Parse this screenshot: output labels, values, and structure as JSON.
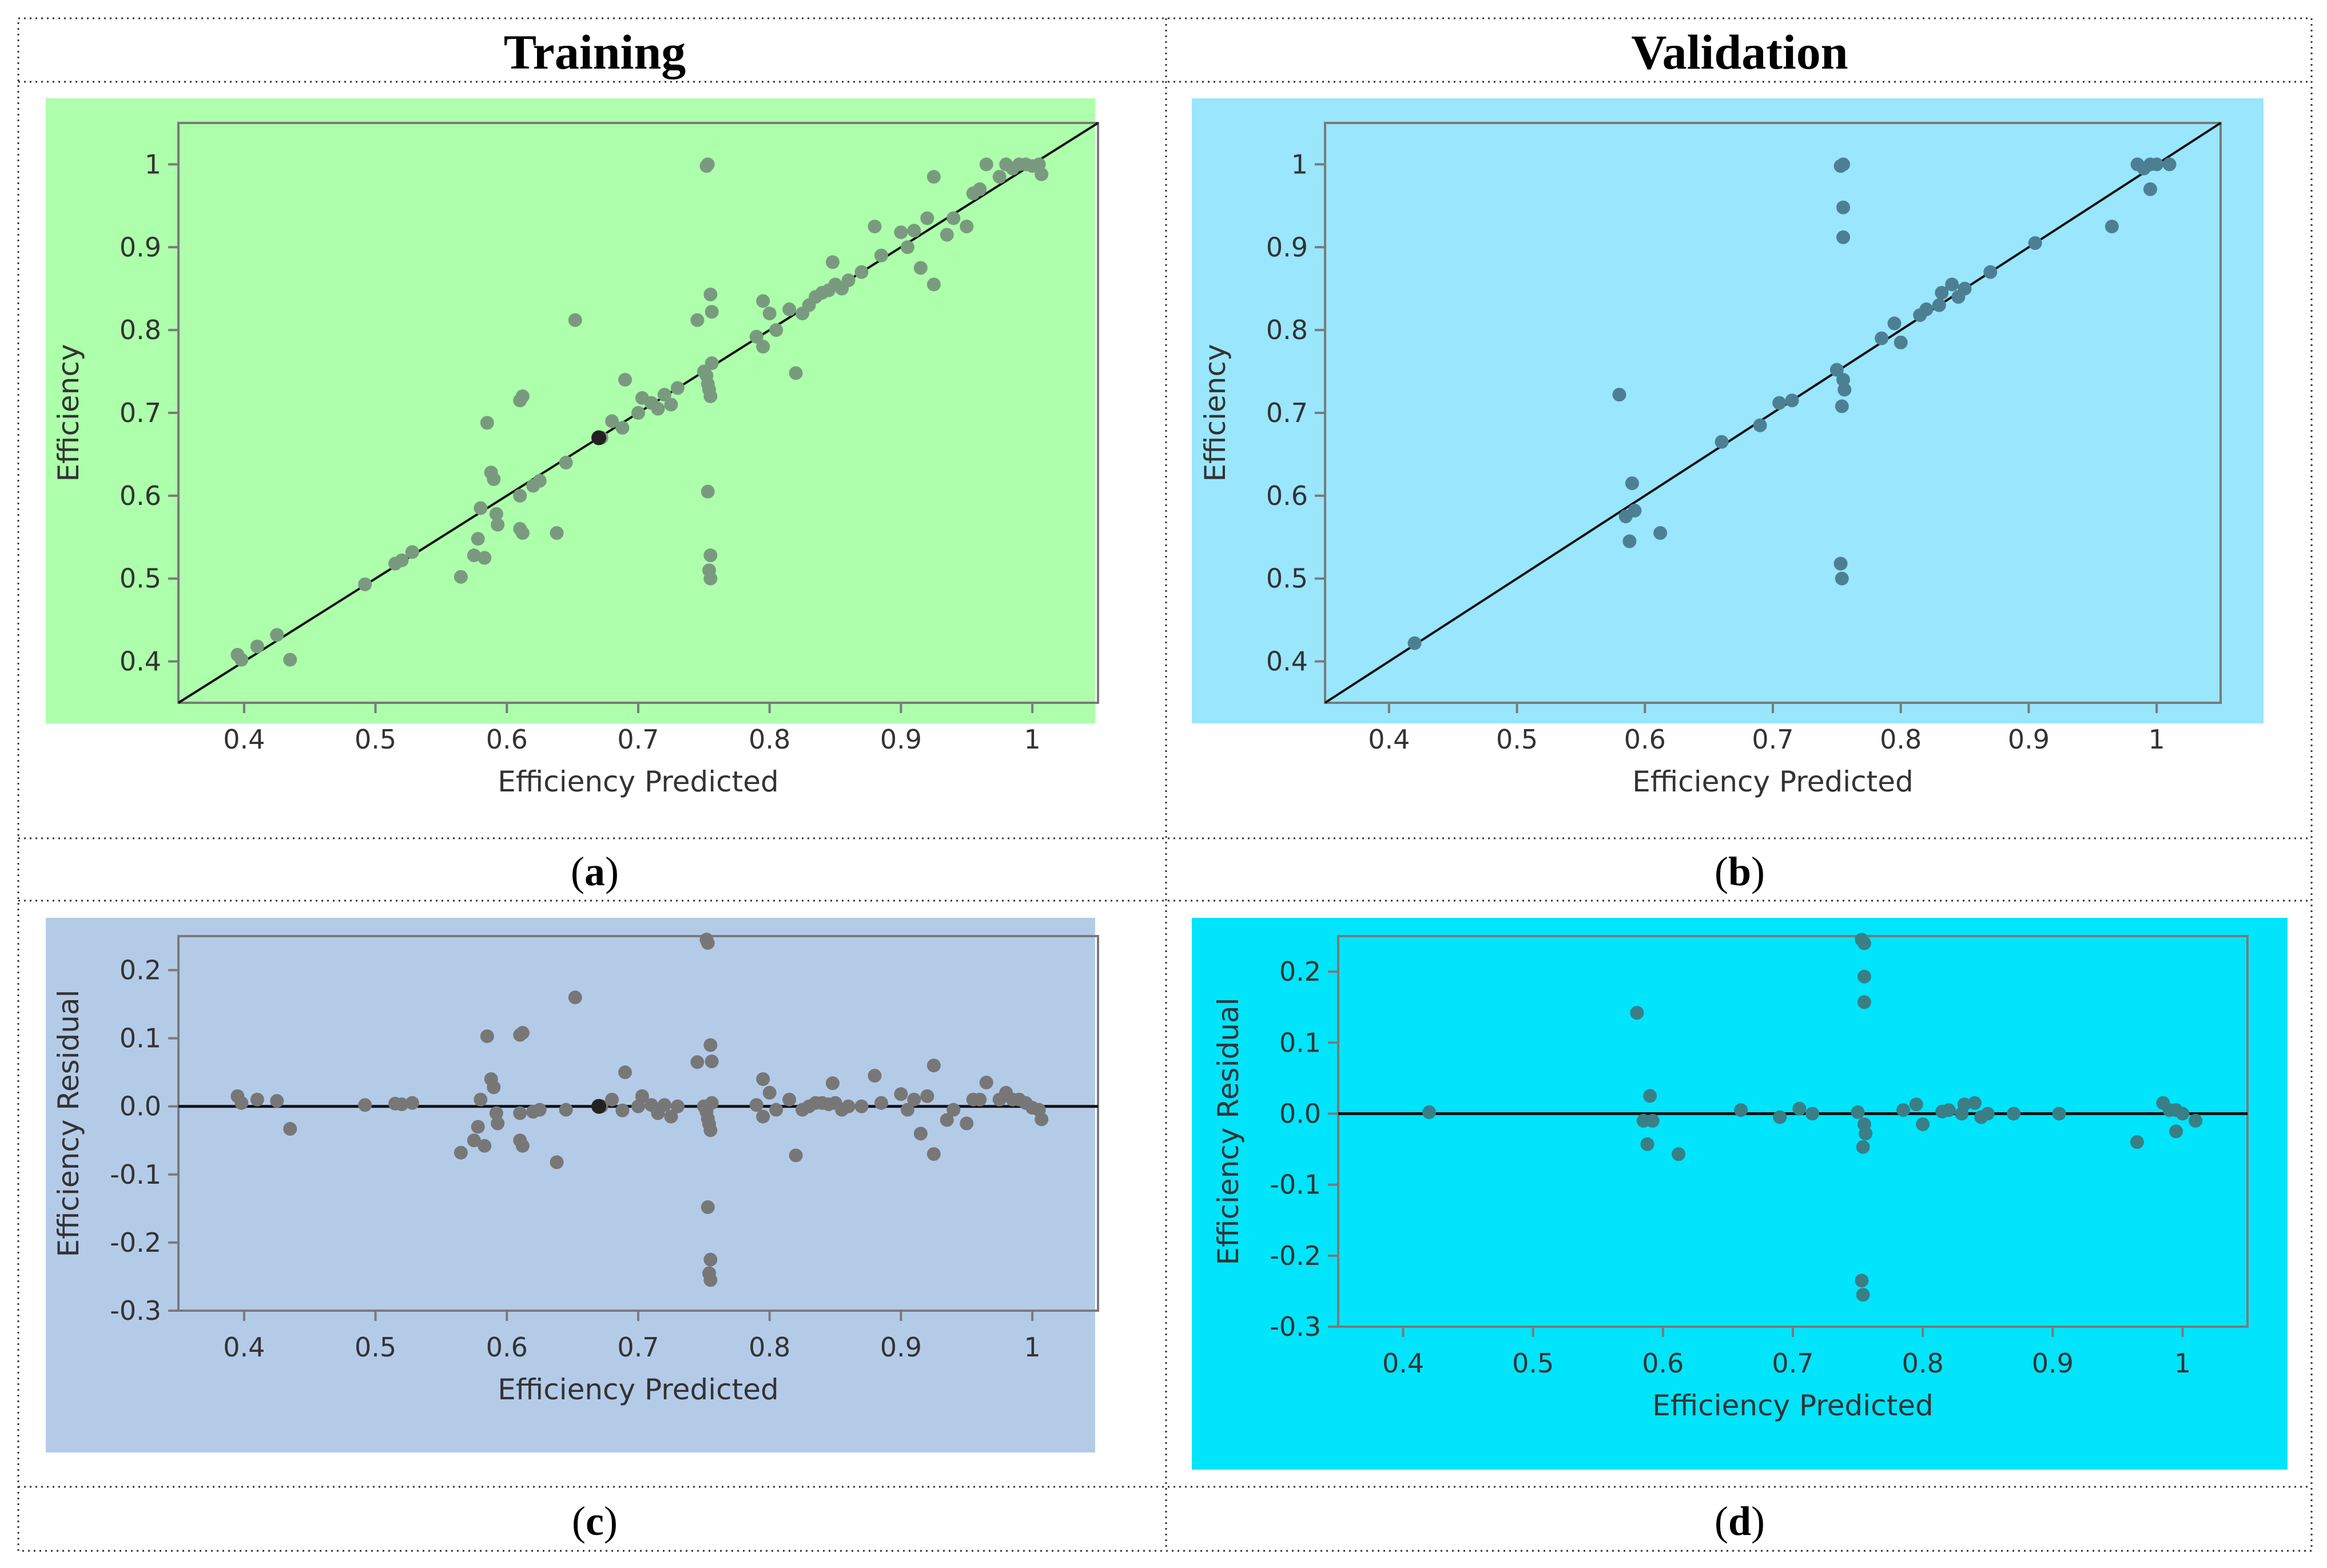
{
  "layout_headers": {
    "left": "Training",
    "right": "Validation"
  },
  "chart_data": [
    {
      "id": "a",
      "type": "scatter",
      "caption_letter": "a",
      "panel_color": "#adffab",
      "marker_color": "#7a9a80",
      "xlabel": "Efficiency Predicted",
      "ylabel": "Efficiency",
      "xlim": [
        0.35,
        1.05
      ],
      "ylim": [
        0.35,
        1.05
      ],
      "xticks": [
        0.4,
        0.5,
        0.6,
        0.7,
        0.8,
        0.9,
        1
      ],
      "yticks": [
        0.4,
        0.5,
        0.6,
        0.7,
        0.8,
        0.9,
        1
      ],
      "reference_line": {
        "type": "identity",
        "from": 0.35,
        "to": 1.05
      },
      "highlight_point": [
        0.67,
        0.67
      ],
      "points": [
        [
          0.395,
          0.408
        ],
        [
          0.398,
          0.402
        ],
        [
          0.41,
          0.418
        ],
        [
          0.425,
          0.432
        ],
        [
          0.435,
          0.402
        ],
        [
          0.492,
          0.493
        ],
        [
          0.515,
          0.518
        ],
        [
          0.52,
          0.522
        ],
        [
          0.528,
          0.532
        ],
        [
          0.565,
          0.502
        ],
        [
          0.575,
          0.528
        ],
        [
          0.578,
          0.548
        ],
        [
          0.583,
          0.525
        ],
        [
          0.58,
          0.585
        ],
        [
          0.585,
          0.688
        ],
        [
          0.588,
          0.628
        ],
        [
          0.59,
          0.62
        ],
        [
          0.592,
          0.578
        ],
        [
          0.593,
          0.565
        ],
        [
          0.61,
          0.6
        ],
        [
          0.61,
          0.56
        ],
        [
          0.612,
          0.555
        ],
        [
          0.612,
          0.72
        ],
        [
          0.61,
          0.715
        ],
        [
          0.62,
          0.612
        ],
        [
          0.625,
          0.618
        ],
        [
          0.638,
          0.555
        ],
        [
          0.645,
          0.64
        ],
        [
          0.652,
          0.812
        ],
        [
          0.672,
          0.67
        ],
        [
          0.68,
          0.69
        ],
        [
          0.688,
          0.682
        ],
        [
          0.69,
          0.74
        ],
        [
          0.7,
          0.7
        ],
        [
          0.703,
          0.718
        ],
        [
          0.71,
          0.712
        ],
        [
          0.715,
          0.705
        ],
        [
          0.72,
          0.722
        ],
        [
          0.725,
          0.71
        ],
        [
          0.73,
          0.73
        ],
        [
          0.745,
          0.812
        ],
        [
          0.75,
          0.75
        ],
        [
          0.752,
          0.745
        ],
        [
          0.753,
          0.735
        ],
        [
          0.754,
          0.728
        ],
        [
          0.755,
          0.72
        ],
        [
          0.756,
          0.76
        ],
        [
          0.752,
          0.998
        ],
        [
          0.753,
          1.0
        ],
        [
          0.755,
          0.843
        ],
        [
          0.756,
          0.822
        ],
        [
          0.753,
          0.605
        ],
        [
          0.755,
          0.528
        ],
        [
          0.754,
          0.51
        ],
        [
          0.755,
          0.5
        ],
        [
          0.79,
          0.792
        ],
        [
          0.795,
          0.78
        ],
        [
          0.795,
          0.835
        ],
        [
          0.8,
          0.82
        ],
        [
          0.805,
          0.8
        ],
        [
          0.815,
          0.825
        ],
        [
          0.82,
          0.748
        ],
        [
          0.825,
          0.82
        ],
        [
          0.83,
          0.83
        ],
        [
          0.835,
          0.84
        ],
        [
          0.84,
          0.845
        ],
        [
          0.845,
          0.848
        ],
        [
          0.848,
          0.882
        ],
        [
          0.85,
          0.855
        ],
        [
          0.855,
          0.85
        ],
        [
          0.86,
          0.86
        ],
        [
          0.87,
          0.87
        ],
        [
          0.88,
          0.925
        ],
        [
          0.885,
          0.89
        ],
        [
          0.9,
          0.918
        ],
        [
          0.905,
          0.9
        ],
        [
          0.91,
          0.92
        ],
        [
          0.915,
          0.875
        ],
        [
          0.92,
          0.935
        ],
        [
          0.925,
          0.985
        ],
        [
          0.925,
          0.855
        ],
        [
          0.935,
          0.915
        ],
        [
          0.94,
          0.935
        ],
        [
          0.95,
          0.925
        ],
        [
          0.955,
          0.965
        ],
        [
          0.96,
          0.97
        ],
        [
          0.965,
          1.0
        ],
        [
          0.975,
          0.985
        ],
        [
          0.98,
          1.0
        ],
        [
          0.985,
          0.995
        ],
        [
          0.99,
          1.0
        ],
        [
          0.995,
          1.0
        ],
        [
          1.0,
          0.998
        ],
        [
          1.005,
          1.0
        ],
        [
          1.007,
          0.988
        ]
      ]
    },
    {
      "id": "b",
      "type": "scatter",
      "caption_letter": "b",
      "panel_color": "#99e6fd",
      "marker_color": "#4d7f94",
      "xlabel": "Efficiency Predicted",
      "ylabel": "Efficiency",
      "xlim": [
        0.35,
        1.05
      ],
      "ylim": [
        0.35,
        1.05
      ],
      "xticks": [
        0.4,
        0.5,
        0.6,
        0.7,
        0.8,
        0.9,
        1
      ],
      "yticks": [
        0.4,
        0.5,
        0.6,
        0.7,
        0.8,
        0.9,
        1
      ],
      "reference_line": {
        "type": "identity",
        "from": 0.35,
        "to": 1.05
      },
      "points": [
        [
          0.42,
          0.422
        ],
        [
          0.58,
          0.722
        ],
        [
          0.585,
          0.575
        ],
        [
          0.59,
          0.615
        ],
        [
          0.592,
          0.582
        ],
        [
          0.588,
          0.545
        ],
        [
          0.612,
          0.555
        ],
        [
          0.66,
          0.665
        ],
        [
          0.69,
          0.685
        ],
        [
          0.705,
          0.712
        ],
        [
          0.715,
          0.715
        ],
        [
          0.75,
          0.752
        ],
        [
          0.753,
          0.998
        ],
        [
          0.755,
          1.0
        ],
        [
          0.755,
          0.948
        ],
        [
          0.755,
          0.912
        ],
        [
          0.755,
          0.74
        ],
        [
          0.756,
          0.728
        ],
        [
          0.754,
          0.708
        ],
        [
          0.753,
          0.518
        ],
        [
          0.754,
          0.5
        ],
        [
          0.785,
          0.79
        ],
        [
          0.795,
          0.808
        ],
        [
          0.8,
          0.785
        ],
        [
          0.815,
          0.818
        ],
        [
          0.82,
          0.825
        ],
        [
          0.83,
          0.83
        ],
        [
          0.832,
          0.845
        ],
        [
          0.84,
          0.855
        ],
        [
          0.845,
          0.84
        ],
        [
          0.85,
          0.85
        ],
        [
          0.87,
          0.87
        ],
        [
          0.905,
          0.905
        ],
        [
          0.965,
          0.925
        ],
        [
          0.985,
          1.0
        ],
        [
          0.99,
          0.995
        ],
        [
          0.995,
          1.0
        ],
        [
          0.995,
          0.97
        ],
        [
          1.0,
          1.0
        ],
        [
          1.01,
          1.0
        ]
      ]
    },
    {
      "id": "c",
      "type": "scatter",
      "caption_letter": "c",
      "panel_color": "#b4cbe8",
      "marker_color": "#777777",
      "xlabel": "Efficiency Predicted",
      "ylabel": "Efficiency Residual",
      "xlim": [
        0.35,
        1.05
      ],
      "ylim": [
        -0.3,
        0.25
      ],
      "xticks": [
        0.4,
        0.5,
        0.6,
        0.7,
        0.8,
        0.9,
        1
      ],
      "yticks": [
        -0.3,
        -0.2,
        -0.1,
        0.0,
        0.1,
        0.2
      ],
      "ytick_labels": [
        "-0.3",
        "-0.2",
        "-0.1",
        "0.0",
        "0.1",
        "0.2"
      ],
      "reference_line": {
        "type": "horizontal",
        "y": 0
      },
      "highlight_point": [
        0.67,
        0.0
      ],
      "points": [
        [
          0.395,
          0.015
        ],
        [
          0.398,
          0.005
        ],
        [
          0.41,
          0.01
        ],
        [
          0.425,
          0.008
        ],
        [
          0.435,
          -0.033
        ],
        [
          0.492,
          0.002
        ],
        [
          0.515,
          0.004
        ],
        [
          0.52,
          0.003
        ],
        [
          0.528,
          0.005
        ],
        [
          0.565,
          -0.068
        ],
        [
          0.575,
          -0.05
        ],
        [
          0.578,
          -0.03
        ],
        [
          0.583,
          -0.058
        ],
        [
          0.58,
          0.01
        ],
        [
          0.585,
          0.103
        ],
        [
          0.588,
          0.04
        ],
        [
          0.59,
          0.028
        ],
        [
          0.592,
          -0.01
        ],
        [
          0.593,
          -0.025
        ],
        [
          0.61,
          -0.01
        ],
        [
          0.61,
          -0.05
        ],
        [
          0.612,
          -0.058
        ],
        [
          0.612,
          0.108
        ],
        [
          0.61,
          0.105
        ],
        [
          0.62,
          -0.008
        ],
        [
          0.625,
          -0.005
        ],
        [
          0.638,
          -0.082
        ],
        [
          0.645,
          -0.005
        ],
        [
          0.652,
          0.16
        ],
        [
          0.672,
          0.0
        ],
        [
          0.68,
          0.01
        ],
        [
          0.688,
          -0.006
        ],
        [
          0.69,
          0.05
        ],
        [
          0.7,
          0.0
        ],
        [
          0.703,
          0.015
        ],
        [
          0.71,
          0.002
        ],
        [
          0.715,
          -0.01
        ],
        [
          0.72,
          0.002
        ],
        [
          0.725,
          -0.015
        ],
        [
          0.73,
          0.0
        ],
        [
          0.745,
          0.065
        ],
        [
          0.75,
          0.0
        ],
        [
          0.752,
          -0.008
        ],
        [
          0.753,
          -0.018
        ],
        [
          0.754,
          -0.026
        ],
        [
          0.755,
          -0.035
        ],
        [
          0.756,
          0.005
        ],
        [
          0.752,
          0.245
        ],
        [
          0.753,
          0.24
        ],
        [
          0.755,
          0.09
        ],
        [
          0.756,
          0.066
        ],
        [
          0.753,
          -0.148
        ],
        [
          0.755,
          -0.225
        ],
        [
          0.754,
          -0.245
        ],
        [
          0.755,
          -0.255
        ],
        [
          0.79,
          0.002
        ],
        [
          0.795,
          -0.015
        ],
        [
          0.795,
          0.04
        ],
        [
          0.8,
          0.02
        ],
        [
          0.805,
          -0.005
        ],
        [
          0.815,
          0.01
        ],
        [
          0.82,
          -0.072
        ],
        [
          0.825,
          -0.005
        ],
        [
          0.83,
          0.0
        ],
        [
          0.835,
          0.005
        ],
        [
          0.84,
          0.005
        ],
        [
          0.845,
          0.003
        ],
        [
          0.848,
          0.034
        ],
        [
          0.85,
          0.005
        ],
        [
          0.855,
          -0.005
        ],
        [
          0.86,
          0.0
        ],
        [
          0.87,
          0.0
        ],
        [
          0.88,
          0.045
        ],
        [
          0.885,
          0.005
        ],
        [
          0.9,
          0.018
        ],
        [
          0.905,
          -0.005
        ],
        [
          0.91,
          0.01
        ],
        [
          0.915,
          -0.04
        ],
        [
          0.92,
          0.015
        ],
        [
          0.925,
          0.06
        ],
        [
          0.925,
          -0.07
        ],
        [
          0.935,
          -0.02
        ],
        [
          0.94,
          -0.005
        ],
        [
          0.95,
          -0.025
        ],
        [
          0.955,
          0.01
        ],
        [
          0.96,
          0.01
        ],
        [
          0.965,
          0.035
        ],
        [
          0.975,
          0.01
        ],
        [
          0.98,
          0.02
        ],
        [
          0.985,
          0.01
        ],
        [
          0.99,
          0.01
        ],
        [
          0.995,
          0.005
        ],
        [
          1.0,
          -0.002
        ],
        [
          1.005,
          -0.005
        ],
        [
          1.007,
          -0.019
        ]
      ]
    },
    {
      "id": "d",
      "type": "scatter",
      "caption_letter": "d",
      "panel_color": "#00e4fc",
      "marker_color": "#3a7f86",
      "xlabel": "Efficiency Predicted",
      "ylabel": "Efficiency Residual",
      "xlim": [
        0.35,
        1.05
      ],
      "ylim": [
        -0.3,
        0.25
      ],
      "xticks": [
        0.4,
        0.5,
        0.6,
        0.7,
        0.8,
        0.9,
        1
      ],
      "yticks": [
        -0.3,
        -0.2,
        -0.1,
        0.0,
        0.1,
        0.2
      ],
      "ytick_labels": [
        "-0.3",
        "-0.2",
        "-0.1",
        "0.0",
        "0.1",
        "0.2"
      ],
      "reference_line": {
        "type": "horizontal",
        "y": 0
      },
      "points": [
        [
          0.42,
          0.002
        ],
        [
          0.58,
          0.142
        ],
        [
          0.585,
          -0.01
        ],
        [
          0.59,
          0.025
        ],
        [
          0.592,
          -0.01
        ],
        [
          0.588,
          -0.043
        ],
        [
          0.612,
          -0.057
        ],
        [
          0.66,
          0.005
        ],
        [
          0.69,
          -0.005
        ],
        [
          0.705,
          0.007
        ],
        [
          0.715,
          0.0
        ],
        [
          0.75,
          0.002
        ],
        [
          0.753,
          0.245
        ],
        [
          0.755,
          0.24
        ],
        [
          0.755,
          0.193
        ],
        [
          0.755,
          0.157
        ],
        [
          0.755,
          -0.015
        ],
        [
          0.756,
          -0.028
        ],
        [
          0.754,
          -0.047
        ],
        [
          0.753,
          -0.235
        ],
        [
          0.754,
          -0.255
        ],
        [
          0.785,
          0.005
        ],
        [
          0.795,
          0.013
        ],
        [
          0.8,
          -0.015
        ],
        [
          0.815,
          0.003
        ],
        [
          0.82,
          0.005
        ],
        [
          0.83,
          0.0
        ],
        [
          0.832,
          0.013
        ],
        [
          0.84,
          0.015
        ],
        [
          0.845,
          -0.005
        ],
        [
          0.85,
          0.0
        ],
        [
          0.87,
          0.0
        ],
        [
          0.905,
          0.0
        ],
        [
          0.965,
          -0.04
        ],
        [
          0.985,
          0.015
        ],
        [
          0.99,
          0.005
        ],
        [
          0.995,
          0.005
        ],
        [
          0.995,
          -0.025
        ],
        [
          1.0,
          0.0
        ],
        [
          1.01,
          -0.01
        ]
      ]
    }
  ]
}
